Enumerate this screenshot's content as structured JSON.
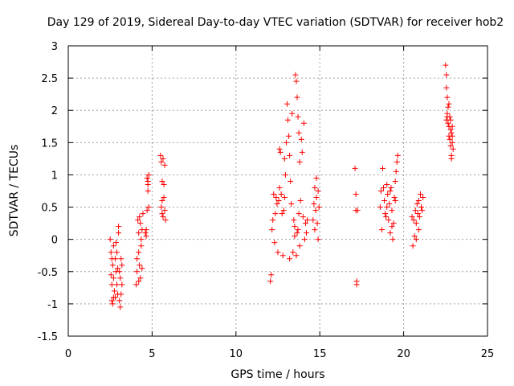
{
  "chart_data": {
    "type": "scatter",
    "title": "Day 129 of 2019, Sidereal Day-to-day VTEC variation (SDTVAR) for receiver hob2",
    "xlabel": "GPS time / hours",
    "ylabel": "SDTVAR / TECUs",
    "xlim": [
      0,
      25
    ],
    "ylim": [
      -1.5,
      3
    ],
    "x_ticks": [
      0,
      5,
      10,
      15,
      20,
      25
    ],
    "x_tick_labels": [
      "0",
      "5",
      "10",
      "15",
      "20",
      "25"
    ],
    "y_ticks": [
      -1.5,
      -1,
      -0.5,
      0,
      0.5,
      1,
      1.5,
      2,
      2.5,
      3
    ],
    "y_tick_labels": [
      "-1.5",
      "-1",
      "-0.5",
      "0",
      "0.5",
      "1",
      "1.5",
      "2",
      "2.5",
      "3"
    ],
    "grid": true,
    "marker": "plus",
    "marker_color": "#ff0000",
    "series": [
      {
        "name": "SDTVAR",
        "points": [
          [
            2.5,
            0.0
          ],
          [
            2.55,
            -0.2
          ],
          [
            2.55,
            -0.55
          ],
          [
            2.6,
            -0.7
          ],
          [
            2.6,
            -0.95
          ],
          [
            2.65,
            -1.0
          ],
          [
            2.65,
            -0.4
          ],
          [
            2.7,
            -0.1
          ],
          [
            2.7,
            -0.6
          ],
          [
            2.75,
            -0.8
          ],
          [
            2.8,
            -0.3
          ],
          [
            2.8,
            -0.9
          ],
          [
            2.85,
            -0.5
          ],
          [
            2.9,
            -0.7
          ],
          [
            2.9,
            -0.2
          ],
          [
            2.95,
            -0.85
          ],
          [
            3.0,
            0.2
          ],
          [
            3.0,
            0.1
          ],
          [
            3.05,
            -0.5
          ],
          [
            3.05,
            -0.95
          ],
          [
            3.1,
            -1.05
          ],
          [
            3.1,
            -0.6
          ],
          [
            3.15,
            -0.3
          ],
          [
            3.2,
            -0.4
          ],
          [
            3.2,
            -0.7
          ],
          [
            2.7,
            -0.9
          ],
          [
            2.6,
            -0.3
          ],
          [
            2.85,
            -0.05
          ],
          [
            2.95,
            -0.45
          ],
          [
            3.15,
            -0.85
          ],
          [
            4.05,
            -0.7
          ],
          [
            4.1,
            -0.5
          ],
          [
            4.1,
            -0.3
          ],
          [
            4.15,
            0.3
          ],
          [
            4.2,
            0.1
          ],
          [
            4.2,
            -0.2
          ],
          [
            4.25,
            -0.4
          ],
          [
            4.25,
            0.35
          ],
          [
            4.3,
            -0.6
          ],
          [
            4.3,
            0.25
          ],
          [
            4.35,
            -0.1
          ],
          [
            4.35,
            0.0
          ],
          [
            4.4,
            -0.45
          ],
          [
            4.4,
            0.15
          ],
          [
            4.45,
            0.4
          ],
          [
            4.2,
            -0.65
          ],
          [
            4.6,
            0.1
          ],
          [
            4.65,
            0.15
          ],
          [
            4.7,
            0.45
          ],
          [
            4.7,
            0.95
          ],
          [
            4.75,
            0.9
          ],
          [
            4.75,
            0.75
          ],
          [
            4.8,
            0.5
          ],
          [
            4.8,
            1.0
          ],
          [
            4.75,
            0.85
          ],
          [
            4.65,
            0.05
          ],
          [
            5.5,
            1.3
          ],
          [
            5.55,
            1.2
          ],
          [
            5.55,
            0.5
          ],
          [
            5.6,
            0.9
          ],
          [
            5.6,
            0.4
          ],
          [
            5.65,
            0.35
          ],
          [
            5.65,
            1.25
          ],
          [
            5.7,
            0.65
          ],
          [
            5.7,
            0.85
          ],
          [
            5.75,
            0.45
          ],
          [
            5.75,
            1.15
          ],
          [
            5.8,
            0.3
          ],
          [
            5.6,
            0.6
          ],
          [
            12.05,
            -0.65
          ],
          [
            12.1,
            -0.55
          ],
          [
            12.15,
            0.15
          ],
          [
            12.2,
            0.3
          ],
          [
            12.25,
            0.7
          ],
          [
            12.3,
            -0.05
          ],
          [
            12.35,
            0.4
          ],
          [
            12.4,
            0.65
          ],
          [
            12.45,
            0.55
          ],
          [
            12.5,
            -0.2
          ],
          [
            12.55,
            0.6
          ],
          [
            12.6,
            0.8
          ],
          [
            12.6,
            1.4
          ],
          [
            12.65,
            1.35
          ],
          [
            12.7,
            0.7
          ],
          [
            12.75,
            0.4
          ],
          [
            12.8,
            -0.25
          ],
          [
            12.85,
            0.45
          ],
          [
            12.9,
            0.65
          ],
          [
            12.95,
            1.0
          ],
          [
            13.0,
            1.5
          ],
          [
            13.05,
            2.1
          ],
          [
            13.1,
            1.85
          ],
          [
            13.15,
            1.6
          ],
          [
            13.2,
            1.3
          ],
          [
            13.25,
            0.9
          ],
          [
            13.3,
            0.55
          ],
          [
            13.35,
            1.95
          ],
          [
            13.4,
            -0.2
          ],
          [
            13.45,
            0.3
          ],
          [
            13.5,
            0.05
          ],
          [
            13.55,
            2.55
          ],
          [
            13.6,
            2.45
          ],
          [
            13.6,
            -0.25
          ],
          [
            13.65,
            2.2
          ],
          [
            13.7,
            1.9
          ],
          [
            13.7,
            0.15
          ],
          [
            13.75,
            1.65
          ],
          [
            13.8,
            1.2
          ],
          [
            13.8,
            -0.1
          ],
          [
            13.85,
            0.6
          ],
          [
            13.9,
            1.55
          ],
          [
            13.95,
            1.35
          ],
          [
            14.0,
            0.35
          ],
          [
            14.05,
            1.8
          ],
          [
            14.1,
            0.0
          ],
          [
            14.15,
            0.25
          ],
          [
            14.2,
            0.1
          ],
          [
            14.25,
            0.3
          ],
          [
            13.5,
            0.2
          ],
          [
            13.65,
            0.1
          ],
          [
            13.75,
            0.4
          ],
          [
            13.2,
            -0.3
          ],
          [
            12.9,
            1.25
          ],
          [
            14.6,
            0.3
          ],
          [
            14.65,
            0.55
          ],
          [
            14.7,
            0.8
          ],
          [
            14.7,
            0.15
          ],
          [
            14.75,
            0.45
          ],
          [
            14.8,
            0.95
          ],
          [
            14.8,
            0.65
          ],
          [
            14.85,
            0.25
          ],
          [
            14.9,
            0.75
          ],
          [
            14.9,
            0.0
          ],
          [
            14.95,
            0.5
          ],
          [
            17.1,
            1.1
          ],
          [
            17.15,
            0.45
          ],
          [
            17.15,
            0.7
          ],
          [
            17.2,
            -0.65
          ],
          [
            17.2,
            -0.7
          ],
          [
            17.25,
            0.45
          ],
          [
            18.6,
            0.5
          ],
          [
            18.65,
            0.75
          ],
          [
            18.7,
            0.15
          ],
          [
            18.75,
            1.1
          ],
          [
            18.8,
            0.8
          ],
          [
            18.85,
            0.6
          ],
          [
            18.9,
            0.4
          ],
          [
            18.95,
            0.35
          ],
          [
            19.0,
            0.85
          ],
          [
            19.05,
            0.7
          ],
          [
            19.1,
            0.3
          ],
          [
            19.15,
            0.55
          ],
          [
            19.2,
            0.1
          ],
          [
            19.25,
            0.8
          ],
          [
            19.3,
            0.45
          ],
          [
            19.35,
            0.0
          ],
          [
            19.4,
            0.25
          ],
          [
            19.45,
            0.65
          ],
          [
            19.5,
            0.9
          ],
          [
            19.55,
            1.05
          ],
          [
            19.6,
            1.2
          ],
          [
            19.65,
            1.3
          ],
          [
            19.2,
            0.75
          ],
          [
            19.0,
            0.5
          ],
          [
            19.3,
            0.2
          ],
          [
            19.5,
            0.6
          ],
          [
            20.5,
            0.35
          ],
          [
            20.55,
            -0.1
          ],
          [
            20.6,
            0.3
          ],
          [
            20.65,
            0.05
          ],
          [
            20.7,
            0.45
          ],
          [
            20.75,
            0.25
          ],
          [
            20.8,
            0.55
          ],
          [
            20.85,
            0.4
          ],
          [
            20.9,
            0.6
          ],
          [
            20.95,
            0.35
          ],
          [
            21.0,
            0.7
          ],
          [
            21.05,
            0.5
          ],
          [
            21.1,
            0.45
          ],
          [
            21.15,
            0.65
          ],
          [
            20.9,
            0.15
          ],
          [
            20.75,
            0.0
          ],
          [
            22.5,
            2.7
          ],
          [
            22.55,
            2.55
          ],
          [
            22.55,
            2.35
          ],
          [
            22.6,
            2.2
          ],
          [
            22.6,
            1.95
          ],
          [
            22.65,
            1.8
          ],
          [
            22.65,
            2.05
          ],
          [
            22.7,
            1.75
          ],
          [
            22.7,
            1.6
          ],
          [
            22.75,
            1.9
          ],
          [
            22.75,
            1.55
          ],
          [
            22.8,
            1.7
          ],
          [
            22.8,
            1.45
          ],
          [
            22.85,
            1.65
          ],
          [
            22.85,
            1.3
          ],
          [
            22.9,
            1.5
          ],
          [
            22.9,
            1.75
          ],
          [
            22.95,
            1.4
          ],
          [
            22.6,
            1.9
          ],
          [
            22.7,
            2.1
          ],
          [
            22.8,
            1.85
          ],
          [
            22.9,
            1.6
          ],
          [
            22.85,
            1.25
          ],
          [
            22.55,
            1.85
          ]
        ]
      }
    ]
  }
}
